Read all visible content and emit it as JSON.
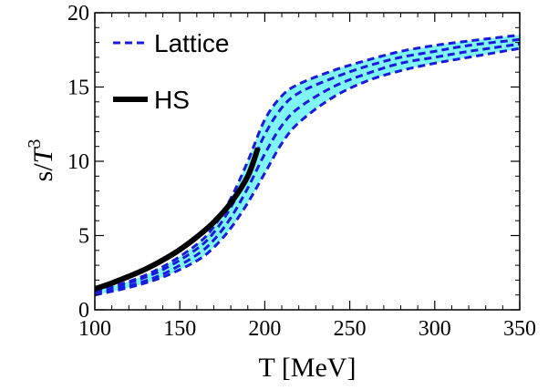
{
  "chart_data": {
    "type": "line",
    "xlabel": "T [MeV]",
    "ylabel_main": "s/",
    "ylabel_var": "T",
    "ylabel_exp": "3",
    "xlim": [
      100,
      350
    ],
    "ylim": [
      0,
      20
    ],
    "x_ticks": [
      100,
      150,
      200,
      250,
      300,
      350
    ],
    "y_ticks": [
      0,
      5,
      10,
      15,
      20
    ],
    "x_tick_labels": [
      "100",
      "150",
      "200",
      "250",
      "300",
      "350"
    ],
    "y_tick_labels": [
      "0",
      "5",
      "10",
      "15",
      "20"
    ],
    "grid": false,
    "legend_position": "top-left",
    "band": {
      "color": "#7ff5f5",
      "x": [
        100,
        120,
        140,
        160,
        170,
        180,
        190,
        200,
        210,
        220,
        240,
        260,
        280,
        300,
        320,
        350
      ],
      "lower": [
        1.0,
        1.5,
        2.2,
        3.3,
        4.2,
        5.5,
        7.2,
        9.2,
        11.2,
        12.6,
        14.3,
        15.4,
        16.1,
        16.6,
        17.0,
        17.6
      ],
      "upper": [
        1.3,
        1.9,
        2.9,
        4.4,
        5.6,
        7.5,
        10.0,
        12.8,
        14.4,
        15.2,
        16.1,
        16.8,
        17.4,
        17.8,
        18.1,
        18.5
      ]
    },
    "series": [
      {
        "name": "Lattice",
        "style": "dashed",
        "color": "#1a1adc",
        "x": [
          100,
          120,
          140,
          160,
          170,
          180,
          190,
          200,
          210,
          220,
          240,
          260,
          280,
          300,
          320,
          350
        ],
        "curves": [
          [
            1.3,
            1.9,
            2.9,
            4.4,
            5.6,
            7.5,
            10.0,
            12.8,
            14.4,
            15.2,
            16.1,
            16.8,
            17.4,
            17.8,
            18.1,
            18.5
          ],
          [
            1.2,
            1.8,
            2.7,
            4.1,
            5.2,
            6.9,
            9.2,
            11.8,
            13.6,
            14.6,
            15.6,
            16.4,
            17.0,
            17.4,
            17.8,
            18.2
          ],
          [
            1.1,
            1.6,
            2.4,
            3.7,
            4.7,
            6.2,
            8.2,
            10.5,
            12.4,
            13.6,
            15.0,
            15.9,
            16.6,
            17.0,
            17.4,
            17.9
          ],
          [
            1.0,
            1.5,
            2.2,
            3.3,
            4.2,
            5.5,
            7.2,
            9.2,
            11.2,
            12.6,
            14.3,
            15.4,
            16.1,
            16.6,
            17.0,
            17.6
          ]
        ]
      },
      {
        "name": "HS",
        "style": "solid",
        "color": "#000000",
        "x": [
          100,
          110,
          120,
          130,
          140,
          150,
          160,
          170,
          180,
          190,
          196
        ],
        "values": [
          1.4,
          1.8,
          2.25,
          2.75,
          3.35,
          4.05,
          4.9,
          5.9,
          7.2,
          9.0,
          10.9
        ]
      }
    ]
  }
}
